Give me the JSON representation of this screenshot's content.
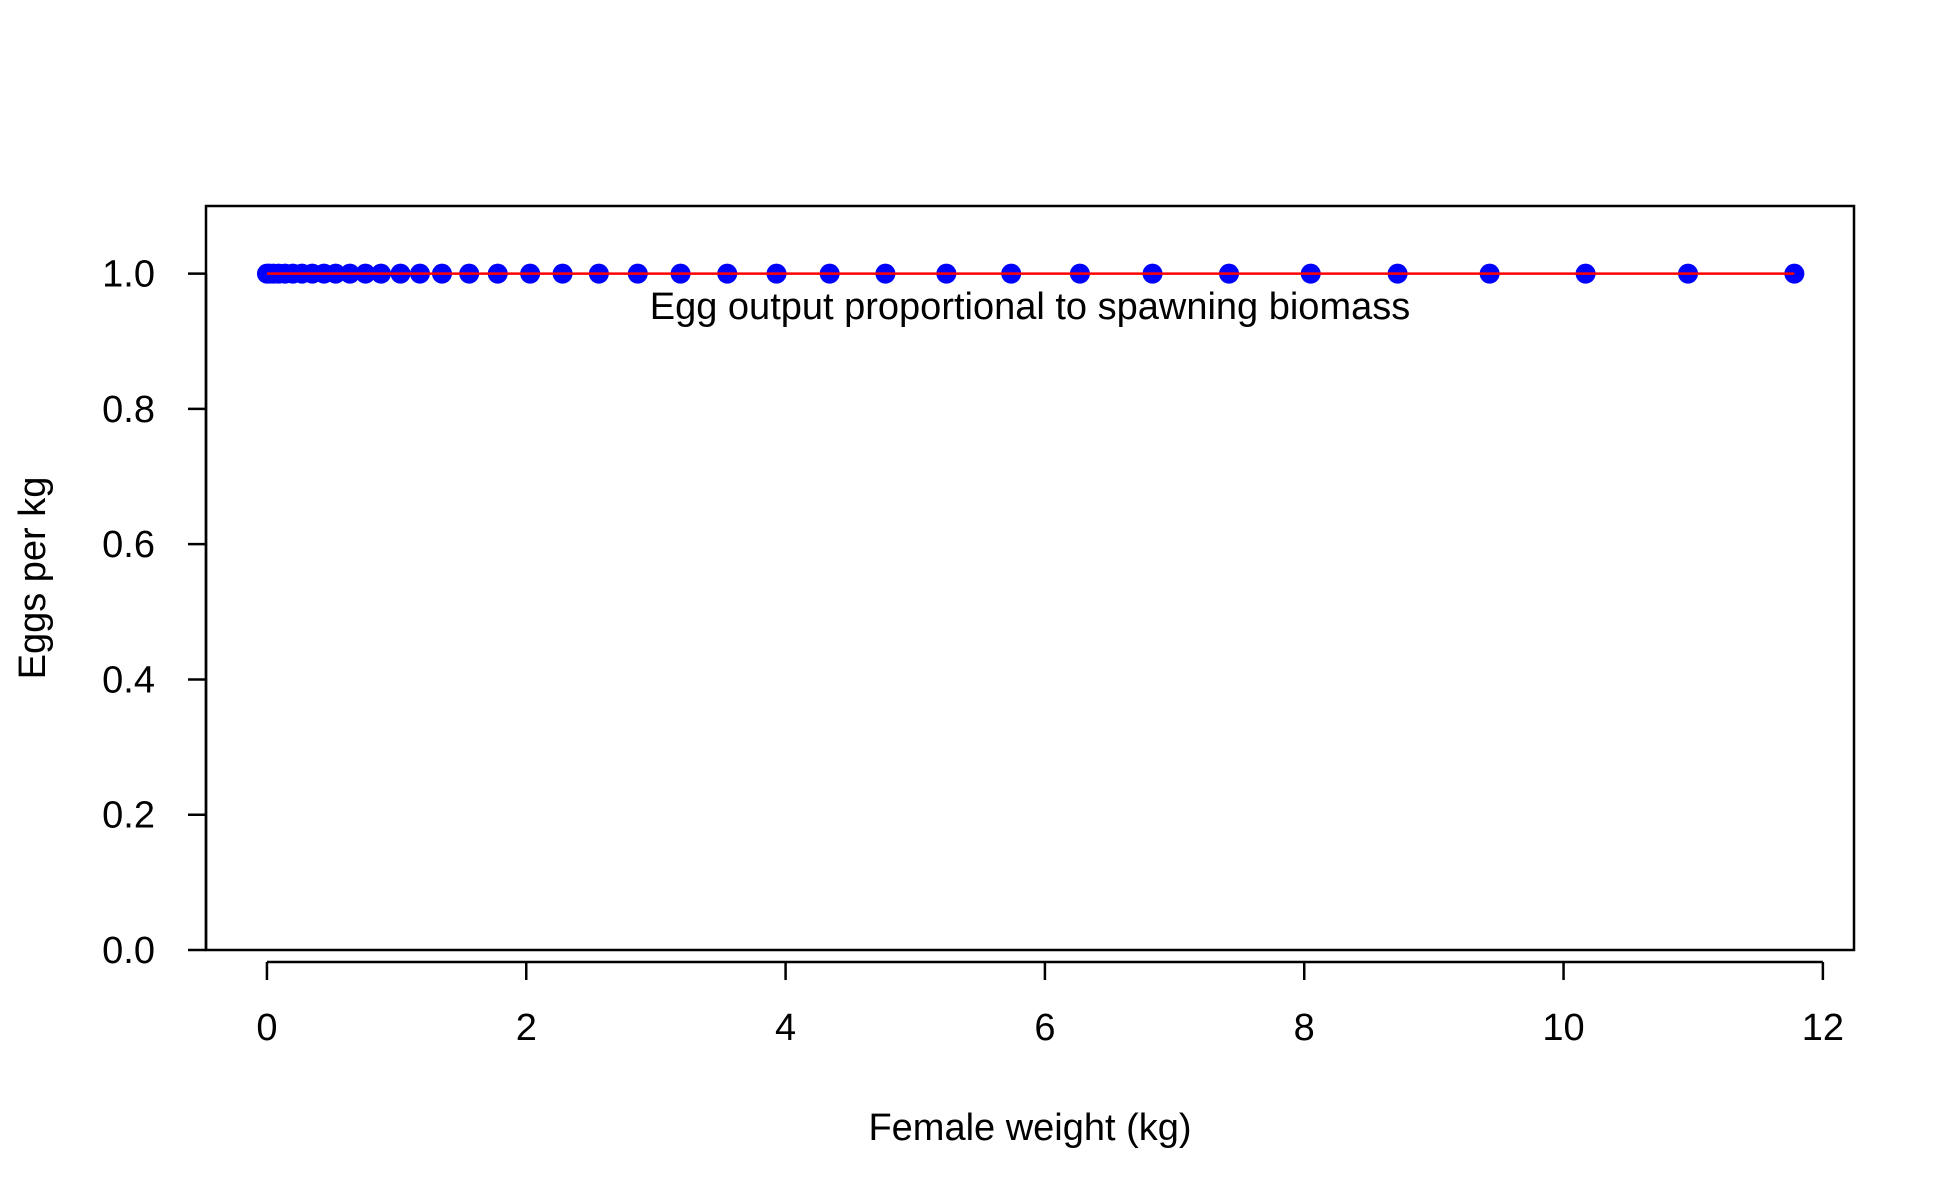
{
  "chart_data": {
    "type": "scatter",
    "title": "",
    "xlabel": "Female weight (kg)",
    "ylabel": "Eggs per kg",
    "annotation": "Egg output proportional to spawning biomass",
    "xlim": [
      -0.47,
      12.24
    ],
    "ylim": [
      0,
      1.1
    ],
    "x_ticks": [
      "0",
      "2",
      "4",
      "6",
      "8",
      "10",
      "12"
    ],
    "y_ticks": [
      "0.0",
      "0.2",
      "0.4",
      "0.6",
      "0.8",
      "1.0"
    ],
    "grid": false,
    "legend": "none",
    "series": [
      {
        "kind": "points",
        "color": "#0000ff",
        "x": [
          0.0,
          0.02,
          0.05,
          0.09,
          0.14,
          0.2,
          0.27,
          0.35,
          0.44,
          0.53,
          0.64,
          0.76,
          0.88,
          1.03,
          1.18,
          1.35,
          1.56,
          1.78,
          2.03,
          2.28,
          2.56,
          2.86,
          3.19,
          3.55,
          3.93,
          4.34,
          4.77,
          5.24,
          5.74,
          6.27,
          6.83,
          7.42,
          8.05,
          8.72,
          9.43,
          10.17,
          10.96,
          11.78
        ],
        "y": [
          1,
          1,
          1,
          1,
          1,
          1,
          1,
          1,
          1,
          1,
          1,
          1,
          1,
          1,
          1,
          1,
          1,
          1,
          1,
          1,
          1,
          1,
          1,
          1,
          1,
          1,
          1,
          1,
          1,
          1,
          1,
          1,
          1,
          1,
          1,
          1,
          1,
          1
        ]
      },
      {
        "kind": "line",
        "color": "#ff0000",
        "x": [
          0.0,
          11.78
        ],
        "y": [
          1,
          1
        ]
      }
    ]
  }
}
